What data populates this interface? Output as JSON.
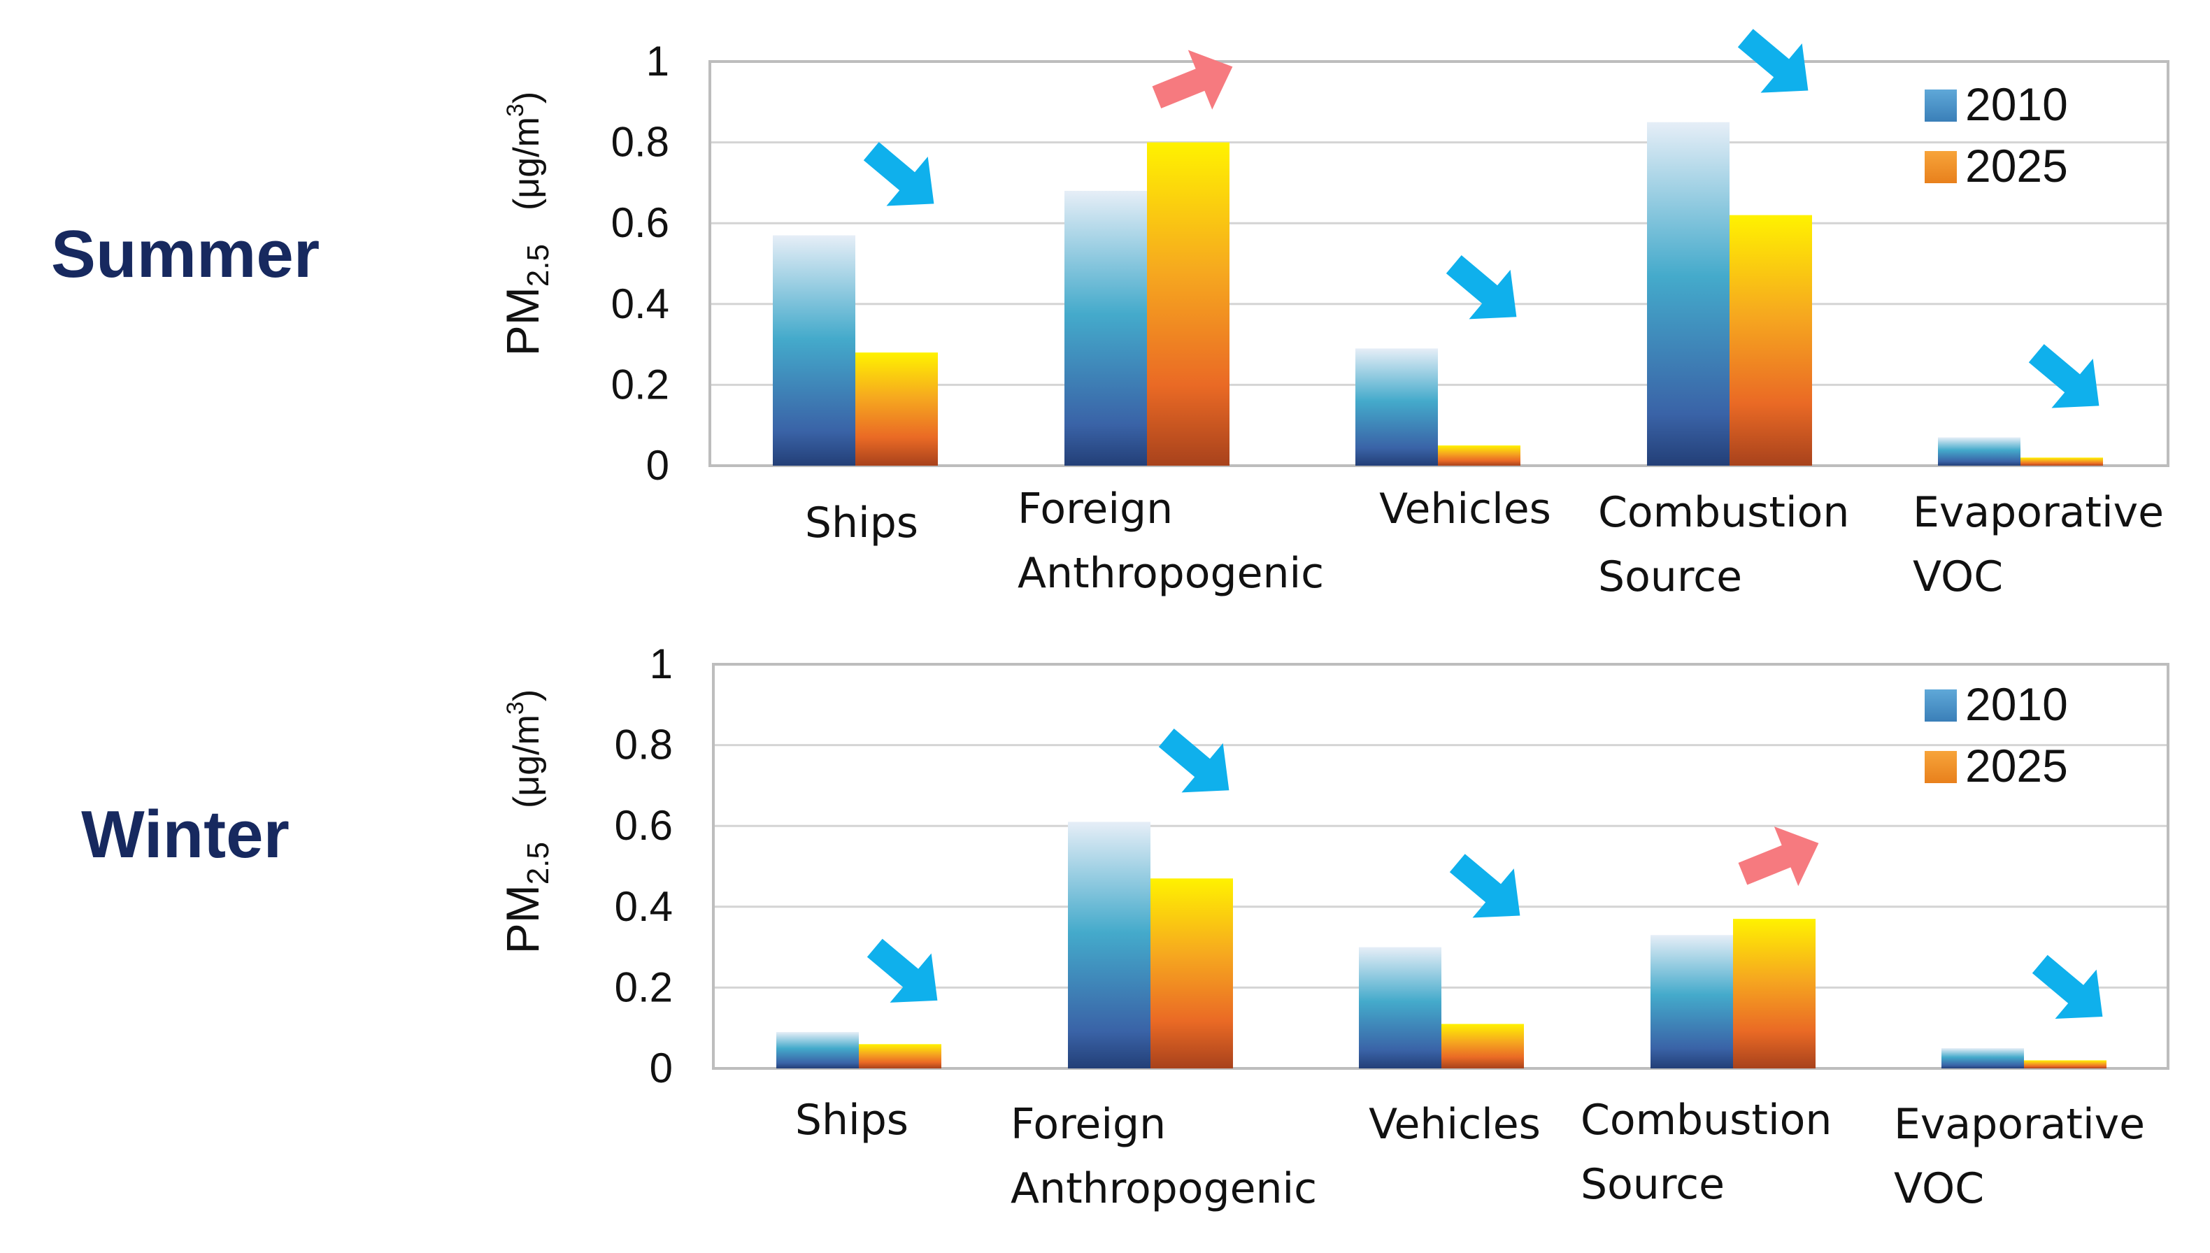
{
  "colors": {
    "season_title": "#17295f",
    "blue_arrow": "#0fb0ec",
    "red_arrow": "#f67a7f",
    "legend_2010": "#4a93c9",
    "legend_2025": "#f09028"
  },
  "chart_data": [
    {
      "type": "bar",
      "panel": "summer",
      "title": "Summer",
      "ylabel_main": "PM",
      "ylabel_sub": "2.5",
      "ylabel_units": "(μg/m",
      "ylabel_units_sup": "3",
      "ylabel_units_close": ")",
      "ylim": [
        0,
        1
      ],
      "yticks": [
        "0",
        "0.2",
        "0.4",
        "0.6",
        "0.8",
        "1"
      ],
      "grid": true,
      "legend_position": "top-right",
      "categories": [
        [
          "Ships"
        ],
        [
          "Foreign",
          "Anthropogenic"
        ],
        [
          "Vehicles"
        ],
        [
          "Combustion",
          "Source"
        ],
        [
          "Evaporative",
          "VOC"
        ]
      ],
      "series": [
        {
          "name": "2010",
          "values": [
            0.57,
            0.68,
            0.29,
            0.85,
            0.07
          ]
        },
        {
          "name": "2025",
          "values": [
            0.28,
            0.8,
            0.05,
            0.62,
            0.02
          ]
        }
      ],
      "trend_arrows": [
        "down",
        "up",
        "down",
        "down",
        "down"
      ]
    },
    {
      "type": "bar",
      "panel": "winter",
      "title": "Winter",
      "ylabel_main": "PM",
      "ylabel_sub": "2.5",
      "ylabel_units": "(μg/m",
      "ylabel_units_sup": "3",
      "ylabel_units_close": ")",
      "ylim": [
        0,
        1
      ],
      "yticks": [
        "0",
        "0.2",
        "0.4",
        "0.6",
        "0.8",
        "1"
      ],
      "grid": true,
      "legend_position": "top-right",
      "categories": [
        [
          "Ships"
        ],
        [
          "Foreign",
          "Anthropogenic"
        ],
        [
          "Vehicles"
        ],
        [
          "Combustion",
          "Source"
        ],
        [
          "Evaporative",
          "VOC"
        ]
      ],
      "series": [
        {
          "name": "2010",
          "values": [
            0.09,
            0.61,
            0.3,
            0.33,
            0.05
          ]
        },
        {
          "name": "2025",
          "values": [
            0.06,
            0.47,
            0.11,
            0.37,
            0.02
          ]
        }
      ],
      "trend_arrows": [
        "down",
        "down",
        "down",
        "up",
        "down"
      ]
    }
  ]
}
